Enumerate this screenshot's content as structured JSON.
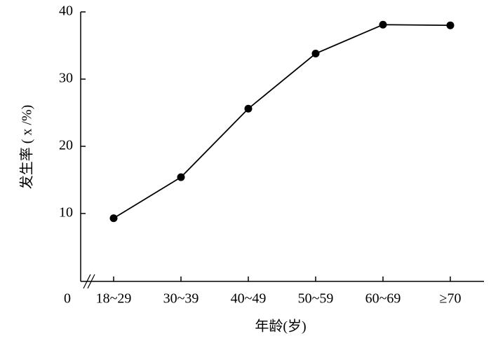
{
  "chart_data": {
    "type": "line",
    "x_label": "年龄(岁)",
    "y_label": "发生率 ( x /%)",
    "categories": [
      "18~29",
      "30~39",
      "40~49",
      "50~59",
      "60~69",
      "≥70"
    ],
    "values": [
      9.3,
      15.4,
      25.6,
      33.8,
      38.1,
      38.0
    ],
    "color": "#000000",
    "ylim": [
      0,
      40
    ],
    "yticks": [
      0,
      10,
      20,
      30,
      40
    ],
    "grid": false
  }
}
